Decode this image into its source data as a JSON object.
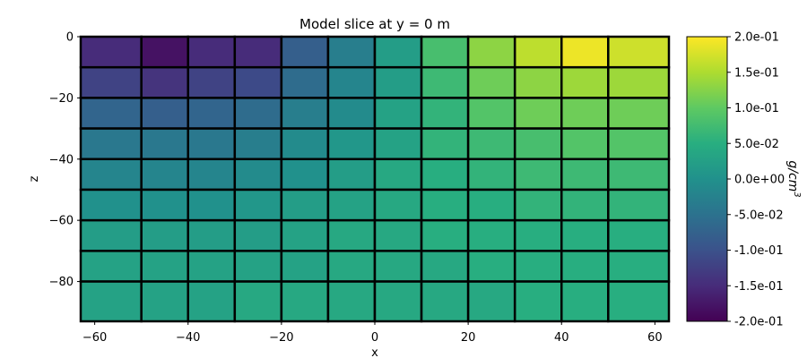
{
  "chart_data": {
    "type": "heatmap",
    "title": "Model slice at y = 0 m",
    "xlabel": "x",
    "ylabel": "z",
    "xlim": [
      -63,
      63
    ],
    "ylim": [
      -93,
      0
    ],
    "x_edges": [
      -63,
      -50,
      -40,
      -30,
      -20,
      -10,
      0,
      10,
      20,
      30,
      40,
      50,
      63
    ],
    "z_edges": [
      0,
      -10,
      -20,
      -30,
      -40,
      -50,
      -60,
      -70,
      -80,
      -93
    ],
    "x_ticks": [
      -60,
      -40,
      -20,
      0,
      20,
      40,
      60
    ],
    "x_tick_labels": [
      "−60",
      "−40",
      "−20",
      "0",
      "20",
      "40",
      "60"
    ],
    "z_ticks": [
      0,
      -20,
      -40,
      -60,
      -80
    ],
    "z_tick_labels": [
      "0",
      "−20",
      "−40",
      "−60",
      "−80"
    ],
    "values": [
      [
        -0.15,
        -0.18,
        -0.15,
        -0.15,
        -0.08,
        -0.03,
        0.02,
        0.08,
        0.13,
        0.16,
        0.19,
        0.17
      ],
      [
        -0.12,
        -0.14,
        -0.12,
        -0.11,
        -0.06,
        -0.02,
        0.02,
        0.07,
        0.11,
        0.13,
        0.14,
        0.14
      ],
      [
        -0.07,
        -0.08,
        -0.07,
        -0.06,
        -0.03,
        -0.01,
        0.03,
        0.06,
        0.09,
        0.11,
        0.11,
        0.11
      ],
      [
        -0.04,
        -0.04,
        -0.04,
        -0.03,
        -0.01,
        0.01,
        0.03,
        0.06,
        0.07,
        0.08,
        0.09,
        0.09
      ],
      [
        -0.02,
        -0.02,
        -0.02,
        -0.01,
        0.0,
        0.02,
        0.04,
        0.05,
        0.06,
        0.07,
        0.07,
        0.07
      ],
      [
        0.0,
        0.0,
        0.0,
        0.01,
        0.02,
        0.03,
        0.04,
        0.05,
        0.05,
        0.06,
        0.06,
        0.06
      ],
      [
        0.02,
        0.02,
        0.02,
        0.02,
        0.03,
        0.04,
        0.04,
        0.05,
        0.05,
        0.05,
        0.05,
        0.05
      ],
      [
        0.03,
        0.03,
        0.03,
        0.03,
        0.03,
        0.04,
        0.04,
        0.04,
        0.05,
        0.05,
        0.05,
        0.05
      ],
      [
        0.03,
        0.03,
        0.03,
        0.04,
        0.04,
        0.04,
        0.04,
        0.04,
        0.04,
        0.05,
        0.05,
        0.05
      ]
    ],
    "colorbar": {
      "label": "g/cm",
      "label_superscript": "3",
      "vmin": -0.2,
      "vmax": 0.2,
      "ticks": [
        0.2,
        0.15,
        0.1,
        0.05,
        0.0,
        -0.05,
        -0.1,
        -0.15,
        -0.2
      ],
      "tick_labels": [
        "2.0e-01",
        "1.5e-01",
        "1.0e-01",
        "5.0e-02",
        "0.0e+00",
        "-5.0e-02",
        "-1.0e-01",
        "-1.5e-01",
        "-2.0e-01"
      ],
      "colormap": "viridis"
    },
    "grid": false
  }
}
